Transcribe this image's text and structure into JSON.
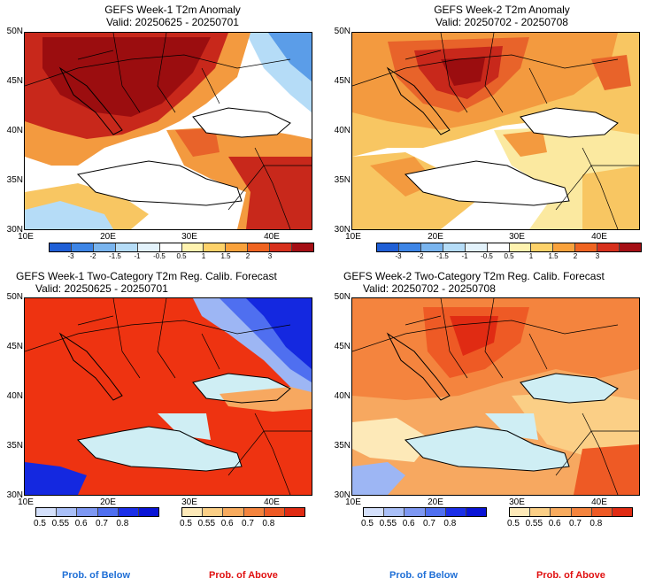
{
  "panels": {
    "tl": {
      "title": "GEFS Week-1 T2m Anomaly",
      "valid": "Valid: 20250625 - 20250701"
    },
    "tr": {
      "title": "GEFS Week-2 T2m Anomaly",
      "valid": "Valid: 20250702 - 20250708"
    },
    "bl": {
      "title": "GEFS Week-1 Two-Category T2m Reg. Calib. Forecast",
      "valid": "Valid: 20250625 - 20250701"
    },
    "br": {
      "title": "GEFS Week-2 Two-Category T2m Reg. Calib. Forecast",
      "valid": "Valid: 20250702 - 20250708"
    }
  },
  "axes": {
    "lat": [
      "50N",
      "45N",
      "40N",
      "35N",
      "30N"
    ],
    "lon": [
      "10E",
      "20E",
      "30E",
      "40E"
    ]
  },
  "anomaly_colorbar": {
    "labels": [
      "-3",
      "-2",
      "-1.5",
      "-1",
      "-0.5",
      "0.5",
      "1",
      "1.5",
      "2",
      "3"
    ],
    "colors": [
      "#1f5fd6",
      "#3d85e6",
      "#79b4ee",
      "#b5dcf7",
      "#e3f2fb",
      "#ffffff",
      "#fff3b0",
      "#fdd26a",
      "#f9a23c",
      "#ef6421",
      "#d7301c",
      "#a50f15"
    ]
  },
  "prob_below": {
    "labels": [
      "0.5",
      "0.55",
      "0.6",
      "0.7",
      "0.8"
    ],
    "colors": [
      "#d4e0fb",
      "#a9bff7",
      "#7e98f2",
      "#4f6ff0",
      "#1b2fe8",
      "#0a14d6"
    ],
    "caption": "Prob. of Below",
    "caption_color": "#1f6fd6"
  },
  "prob_above": {
    "labels": [
      "0.5",
      "0.55",
      "0.6",
      "0.7",
      "0.8"
    ],
    "colors": [
      "#fde9b8",
      "#fbcf86",
      "#f8ab5e",
      "#f4843e",
      "#ee5a25",
      "#e02b13"
    ],
    "caption": "Prob. of Above",
    "caption_color": "#e01010"
  },
  "map_colors": {
    "sea": "#cfeef4",
    "land_white": "#ffffff",
    "warm1": "#fbe9a0",
    "warm2": "#f8c662",
    "warm3": "#f39a3f",
    "warm4": "#e8632a",
    "warm5": "#c8281b",
    "warm6": "#9b0d0f",
    "cold1": "#b5dcf7",
    "cold2": "#5b9de8",
    "cold3": "#2a66d8",
    "prob_above_main": "#ee3311",
    "prob_above_light": "#f7a860",
    "prob_below_main": "#1428e0",
    "prob_below_light": "#9db6f4"
  }
}
